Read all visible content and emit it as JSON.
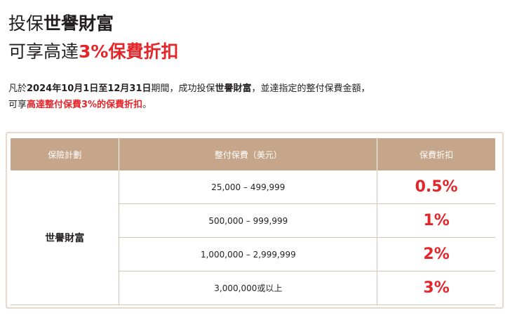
{
  "header": {
    "title_line1": [
      "投保",
      "世譽財富"
    ],
    "title_line2": [
      "可享高達",
      "3%保費折扣"
    ]
  },
  "intro": {
    "line1": [
      "凡於",
      "2024年10月1日至12月31日",
      "期間，成功投保",
      "世譽財富",
      "，並達指定的整付保費金額，"
    ],
    "line2": [
      "可享",
      "高達整付保費3%的保費折扣",
      "。"
    ]
  },
  "table": {
    "headers": [
      "保險計劃",
      "整付保費（美元）",
      "保費折扣"
    ],
    "plan": "世譽財富",
    "rows": [
      [
        "25,000 – 499,999",
        "0.5%"
      ],
      [
        "500,000 – 999,999",
        "1%"
      ],
      [
        "1,000,000 – 2,999,999",
        "2%"
      ],
      [
        "3,000,000或以上",
        "3%"
      ]
    ]
  }
}
